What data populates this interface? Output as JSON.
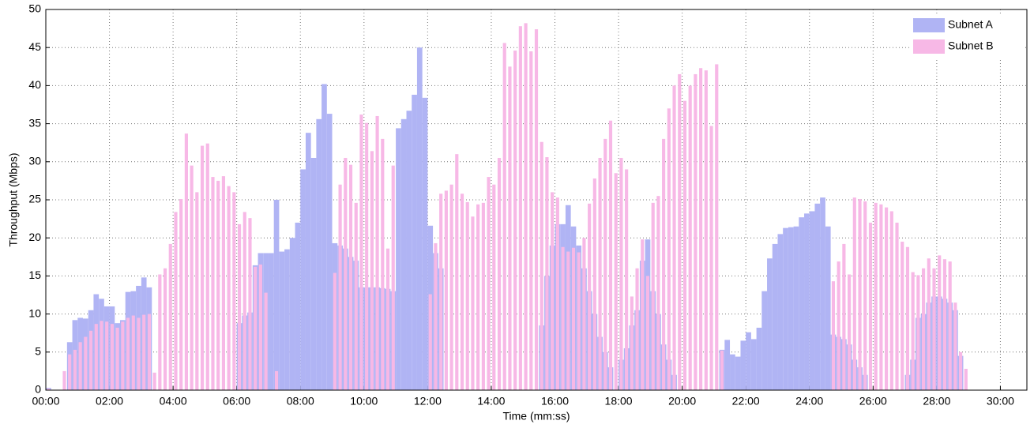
{
  "chart_data": {
    "type": "bar",
    "x_label": "Time (mm:ss)",
    "y_label": "Throughput (Mbps)",
    "x": [
      0,
      10,
      20,
      30,
      40,
      50,
      60,
      70,
      80,
      90,
      100,
      110,
      120,
      130,
      140,
      150,
      160,
      170,
      180,
      190,
      200,
      210,
      220,
      230,
      240,
      250,
      260,
      270,
      280,
      290,
      300,
      310,
      320,
      330,
      340,
      350,
      360,
      370,
      380,
      390,
      400,
      410,
      420,
      430,
      440,
      450,
      460,
      470,
      480,
      490,
      500,
      510,
      520,
      530,
      540,
      550,
      560,
      570,
      580,
      590,
      600,
      610,
      620,
      630,
      640,
      650,
      660,
      670,
      680,
      690,
      700,
      710,
      720,
      730,
      740,
      750,
      760,
      770,
      780,
      790,
      800,
      810,
      820,
      830,
      840,
      850,
      860,
      870,
      880,
      890,
      900,
      910,
      920,
      930,
      940,
      950,
      960,
      970,
      980,
      990,
      1000,
      1010,
      1020,
      1030,
      1040,
      1050,
      1060,
      1070,
      1080,
      1090,
      1100,
      1110,
      1120,
      1130,
      1140,
      1150,
      1160,
      1170,
      1180,
      1190,
      1200,
      1210,
      1220,
      1230,
      1240,
      1250,
      1260,
      1270,
      1280,
      1290,
      1300,
      1310,
      1320,
      1330,
      1340,
      1350,
      1360,
      1370,
      1380,
      1390,
      1400,
      1410,
      1420,
      1430,
      1440,
      1450,
      1460,
      1470,
      1480,
      1490,
      1500,
      1510,
      1520,
      1530,
      1540,
      1550,
      1560,
      1570,
      1580,
      1590,
      1600,
      1610,
      1620,
      1630,
      1640,
      1650,
      1660,
      1670,
      1680,
      1690,
      1700,
      1710,
      1720,
      1730,
      1740,
      1750,
      1760,
      1770,
      1780,
      1790,
      1800
    ],
    "series": [
      {
        "name": "Subnet A",
        "color": "#b0b4f4",
        "values": [
          0.3,
          0,
          0,
          0,
          6.3,
          9.2,
          9.5,
          9.4,
          10.5,
          12.6,
          12,
          11,
          11,
          8.8,
          9.2,
          12.9,
          13,
          13.7,
          14.8,
          13.5,
          0,
          0,
          0,
          0,
          0,
          0,
          0,
          0,
          0,
          0,
          0,
          0,
          0,
          0,
          0,
          0,
          8.8,
          9.8,
          10.2,
          16.4,
          18,
          18,
          18,
          25,
          18.2,
          18.5,
          20,
          22,
          29,
          33.8,
          30.5,
          35.6,
          40.2,
          36.3,
          19.3,
          19,
          18.6,
          17.5,
          17,
          13.5,
          13.5,
          13.5,
          13.5,
          13.4,
          13.3,
          13,
          34.4,
          35.6,
          36.7,
          38.8,
          45,
          38.4,
          21.6,
          18,
          16,
          0,
          0,
          0,
          0,
          0,
          0,
          0,
          0,
          0,
          0,
          0,
          0,
          0,
          0,
          0,
          0,
          0,
          0,
          8.5,
          15,
          19,
          21.8,
          21.8,
          24.3,
          21.5,
          19,
          16,
          13,
          10,
          7,
          5,
          3,
          0,
          4,
          5.5,
          8.5,
          10.5,
          17,
          19.8,
          13,
          10,
          6,
          4,
          2,
          0,
          0,
          0,
          0,
          0,
          0,
          0,
          0,
          5.3,
          6.6,
          4.7,
          4.4,
          6.5,
          7.6,
          6.7,
          8.2,
          13,
          17.3,
          19.2,
          20.5,
          21.3,
          21.4,
          21.5,
          22.7,
          23.2,
          23.5,
          24.5,
          25.3,
          21.5,
          7.3,
          7,
          6.7,
          6,
          4,
          3,
          2,
          0,
          0,
          0,
          0,
          0,
          0,
          0,
          2,
          4,
          9.5,
          10,
          11.5,
          12.3,
          12.3,
          12,
          11.5,
          10.5,
          4.5,
          0,
          0,
          0,
          0,
          0,
          0,
          0,
          0
        ]
      },
      {
        "name": "Subnet B",
        "color": "#f7b8e6",
        "values": [
          0.2,
          0,
          0,
          2.5,
          4.7,
          5.3,
          6.3,
          7,
          7.8,
          8.7,
          9.1,
          9,
          8.7,
          8.2,
          9,
          9.5,
          9.8,
          9.5,
          9.9,
          10,
          2.3,
          15.2,
          16,
          19.2,
          23.4,
          25.1,
          33.7,
          29.5,
          26,
          32.1,
          32.4,
          28,
          27.5,
          28.1,
          26.8,
          26,
          21.8,
          23.4,
          22.6,
          16.2,
          16.5,
          12.8,
          0,
          2.5,
          0,
          0,
          0,
          0,
          0,
          0,
          0,
          0,
          0,
          0,
          15.4,
          27,
          30.5,
          29.6,
          24.6,
          36.2,
          35.1,
          31.4,
          36,
          33,
          18.6,
          29.5,
          0,
          0,
          0,
          0,
          0,
          0,
          12.6,
          19.3,
          25.8,
          26.2,
          27,
          31,
          25.8,
          24.7,
          22.8,
          24.4,
          24.6,
          28,
          27,
          30.5,
          45.6,
          42.5,
          44.6,
          47.8,
          48.2,
          44.5,
          47.4,
          32.6,
          30.6,
          26,
          25.3,
          18.8,
          18.2,
          18.7,
          18.1,
          20,
          24.5,
          27.8,
          30.5,
          33,
          35.4,
          28.5,
          30.5,
          29,
          12.3,
          16,
          19.8,
          15,
          24.6,
          25.5,
          33,
          37,
          40,
          41.5,
          38,
          40,
          41.5,
          42.3,
          42,
          34.7,
          42.8,
          5.2,
          0,
          0,
          0,
          0,
          0,
          0,
          0,
          0,
          0,
          0,
          0,
          0,
          0,
          0,
          0,
          0,
          0,
          0,
          0,
          0,
          14.3,
          16.9,
          19.2,
          15.2,
          25.3,
          25.1,
          24.8,
          22,
          24.6,
          24.4,
          24,
          23.5,
          22,
          19.5,
          18.8,
          15.5,
          15.1,
          16,
          17.3,
          16,
          17.7,
          17.2,
          16.9,
          11.5,
          5,
          2.8,
          0,
          0,
          0,
          0,
          0,
          0,
          0
        ]
      }
    ],
    "bin_width": 10,
    "xlim": [
      0,
      1850
    ],
    "ylim": [
      0,
      50
    ],
    "xticks": [
      {
        "value": 0,
        "label": "00:00"
      },
      {
        "value": 120,
        "label": "02:00"
      },
      {
        "value": 240,
        "label": "04:00"
      },
      {
        "value": 360,
        "label": "06:00"
      },
      {
        "value": 480,
        "label": "08:00"
      },
      {
        "value": 600,
        "label": "10:00"
      },
      {
        "value": 720,
        "label": "12:00"
      },
      {
        "value": 840,
        "label": "14:00"
      },
      {
        "value": 960,
        "label": "16:00"
      },
      {
        "value": 1080,
        "label": "18:00"
      },
      {
        "value": 1200,
        "label": "20:00"
      },
      {
        "value": 1320,
        "label": "22:00"
      },
      {
        "value": 1440,
        "label": "24:00"
      },
      {
        "value": 1560,
        "label": "26:00"
      },
      {
        "value": 1680,
        "label": "28:00"
      },
      {
        "value": 1800,
        "label": "30:00"
      }
    ],
    "yticks": [
      0,
      5,
      10,
      15,
      20,
      25,
      30,
      35,
      40,
      45,
      50
    ],
    "grid": true,
    "legend": "upper right"
  }
}
